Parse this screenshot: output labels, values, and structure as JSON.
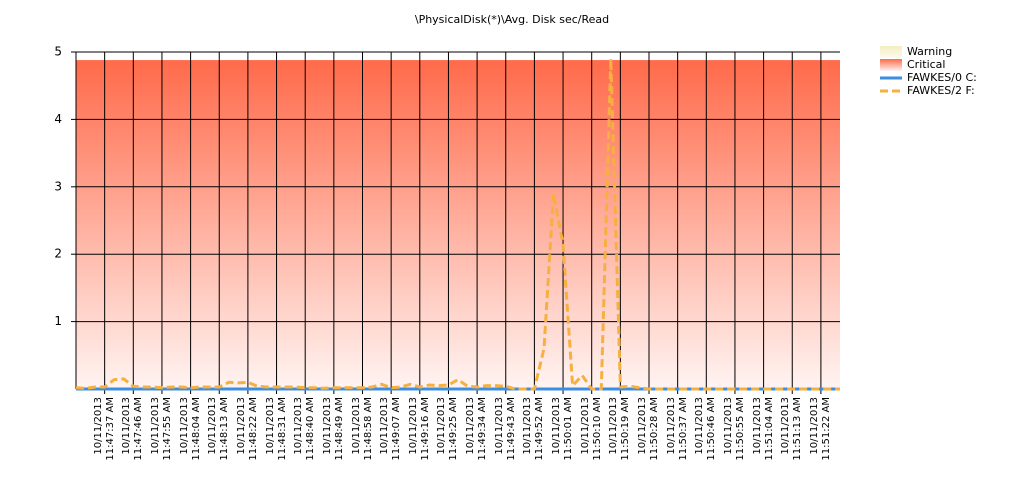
{
  "chart_data": {
    "type": "line",
    "title": "\\PhysicalDisk(*)\\Avg. Disk sec/Read",
    "ylim": [
      0,
      5
    ],
    "yticks": [
      1,
      2,
      3,
      4,
      5
    ],
    "grid": true,
    "legend": "right",
    "bands": [
      {
        "name": "Warning",
        "color": "#f3edc0"
      },
      {
        "name": "Critical",
        "color": "#ff6a4a",
        "from": 0,
        "to": 4.88
      }
    ],
    "categories": [
      null,
      null,
      null,
      "10/11/2013\n11:47:37 AM",
      null,
      null,
      "10/11/2013\n11:47:46 AM",
      null,
      null,
      "10/11/2013\n11:47:55 AM",
      null,
      null,
      "10/11/2013\n11:48:04 AM",
      null,
      null,
      "10/11/2013\n11:48:13 AM",
      null,
      null,
      "10/11/2013\n11:48:22 AM",
      null,
      null,
      "10/11/2013\n11:48:31 AM",
      null,
      null,
      "10/11/2013\n11:48:40 AM",
      null,
      null,
      "10/11/2013\n11:48:49 AM",
      null,
      null,
      "10/11/2013\n11:48:58 AM",
      null,
      null,
      "10/11/2013\n11:49:07 AM",
      null,
      null,
      "10/11/2013\n11:49:16 AM",
      null,
      null,
      "10/11/2013\n11:49:25 AM",
      null,
      null,
      "10/11/2013\n11:49:34 AM",
      null,
      null,
      "10/11/2013\n11:49:43 AM",
      null,
      null,
      "10/11/2013\n11:49:52 AM",
      null,
      null,
      "10/11/2013\n11:50:01 AM",
      null,
      null,
      "10/11/2013\n11:50:10 AM",
      null,
      null,
      "10/11/2013\n11:50:19 AM",
      null,
      null,
      "10/11/2013\n11:50:28 AM",
      null,
      null,
      "10/11/2013\n11:50:37 AM",
      null,
      null,
      "10/11/2013\n11:50:46 AM",
      null,
      null,
      "10/11/2013\n11:50:55 AM",
      null,
      null,
      "10/11/2013\n11:51:04 AM",
      null,
      null,
      "10/11/2013\n11:51:13 AM",
      null,
      null,
      "10/11/2013\n11:51:22 AM",
      null,
      null
    ],
    "series": [
      {
        "name": "FAWKES/0 C:",
        "color": "#3c8ee0",
        "dashed": false,
        "values": [
          0,
          0,
          0,
          0,
          0,
          0,
          0,
          0,
          0,
          0,
          0,
          0,
          0,
          0,
          0,
          0,
          0,
          0,
          0,
          0,
          0,
          0,
          0,
          0,
          0,
          0,
          0,
          0,
          0,
          0,
          0,
          0,
          0,
          0,
          0,
          0,
          0,
          0,
          0,
          0,
          0,
          0,
          0,
          0,
          0,
          0,
          0,
          0,
          0,
          0,
          0,
          0,
          0,
          0,
          0,
          0,
          0,
          0,
          0,
          0,
          0,
          0,
          0,
          0,
          0,
          0,
          0,
          0,
          0,
          0,
          0,
          0,
          0,
          0,
          0,
          0,
          0,
          0,
          0,
          0,
          0
        ]
      },
      {
        "name": "FAWKES/2 F:",
        "color": "#f5b041",
        "dashed": true,
        "values": [
          0.02,
          0.01,
          0.03,
          0.03,
          0.14,
          0.15,
          0.04,
          0.03,
          0.03,
          0.02,
          0.03,
          0.03,
          0.02,
          0.03,
          0.03,
          0.03,
          0.1,
          0.09,
          0.1,
          0.04,
          0.03,
          0.03,
          0.03,
          0.03,
          0.02,
          0.02,
          0.01,
          0.02,
          0.02,
          0.02,
          0.02,
          0.03,
          0.07,
          0.02,
          0.03,
          0.07,
          0.03,
          0.06,
          0.05,
          0.06,
          0.14,
          0.04,
          0.03,
          0.05,
          0.05,
          0.04,
          0,
          0,
          0,
          0.6,
          2.9,
          2.15,
          0.05,
          0.2,
          0,
          0,
          4.9,
          0.03,
          0.04,
          0.02,
          0,
          0,
          0,
          0,
          0,
          0,
          0,
          0,
          0,
          0,
          0,
          0,
          0,
          0,
          0,
          0,
          0,
          0,
          0,
          0,
          0
        ]
      }
    ]
  }
}
